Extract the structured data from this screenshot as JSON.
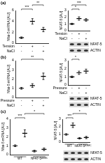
{
  "chart_data": [
    {
      "type": "scatter",
      "panel": "(a)",
      "y_label": "Nfat-5 mRNA [AU]",
      "categories": [
        null,
        null,
        null
      ],
      "values": [
        1,
        4,
        2.5
      ],
      "errors": [
        0.15,
        0.5,
        0.4
      ],
      "color": "#000000",
      "marker": "line",
      "ylim": [
        0,
        6
      ],
      "yticks": [
        0,
        2,
        4,
        6
      ],
      "grid": false,
      "tick_labels": "y",
      "annotations": [
        {
          "text": "***",
          "from": 0,
          "to": 1
        },
        {
          "text": "**",
          "from": 1,
          "to": 2
        }
      ],
      "conditions": [
        {
          "label": "Tension",
          "marks": [
            "-",
            "+",
            "-"
          ]
        },
        {
          "label": "NaCl",
          "marks": [
            "-",
            "-",
            "+"
          ]
        }
      ]
    },
    {
      "type": "scatter",
      "y_label": "NFAT-5 [AU]",
      "categories": [
        null,
        null,
        null
      ],
      "values": [
        1,
        1.8,
        1.6
      ],
      "errors": [
        0.1,
        0.25,
        0.2
      ],
      "color": "#000000",
      "marker": "line",
      "ylim": [
        0,
        3
      ],
      "yticks": [
        0,
        1,
        2,
        3
      ],
      "grid": false,
      "tick_labels": "y",
      "annotations": [
        {
          "text": "*",
          "from": 0,
          "to": 1
        },
        {
          "text": "***",
          "from": 0,
          "to": 2
        }
      ],
      "conditions": [
        {
          "label": "Tension",
          "marks": [
            "-",
            "+",
            "-"
          ]
        },
        {
          "label": "NaCl",
          "marks": [
            "-",
            "-",
            "+"
          ]
        }
      ],
      "blot_labels": [
        "NFAT-5",
        "ACTIN"
      ]
    },
    {
      "type": "scatter",
      "panel": "(b)",
      "y_label": "Nfat-5 mRNA [AU]",
      "categories": [
        null,
        null,
        null
      ],
      "values": [
        1,
        1.3,
        2.3
      ],
      "errors": [
        0.1,
        0.2,
        0.35
      ],
      "color": "#000000",
      "marker": "line",
      "ylim": [
        0,
        4
      ],
      "yticks": [
        0,
        1,
        2,
        3,
        4
      ],
      "grid": false,
      "tick_labels": "y",
      "annotations": [
        {
          "text": "**",
          "from": 0,
          "to": 2
        }
      ],
      "conditions": [
        {
          "label": "Pressure",
          "marks": [
            "-",
            "+",
            "-"
          ]
        },
        {
          "label": "NaCl",
          "marks": [
            "-",
            "-",
            "+"
          ]
        }
      ]
    },
    {
      "type": "scatter",
      "y_label": "NFAT-5 [AU]",
      "categories": [
        null,
        null,
        null
      ],
      "values": [
        1,
        1.5,
        1.7
      ],
      "errors": [
        0.1,
        0.2,
        0.25
      ],
      "color": "#000000",
      "marker": "line",
      "ylim": [
        0,
        3
      ],
      "yticks": [
        0,
        1,
        2,
        3
      ],
      "grid": false,
      "tick_labels": "y",
      "annotations": [
        {
          "text": "*",
          "from": 0,
          "to": 1
        }
      ],
      "conditions": [
        {
          "label": "Pressure",
          "marks": [
            "-",
            "+",
            "-"
          ]
        },
        {
          "label": "NaCl",
          "marks": [
            "-",
            "-",
            "+"
          ]
        }
      ],
      "blot_labels": [
        "NFAT-5",
        "ACTIN"
      ]
    },
    {
      "type": "scatter",
      "panel": "(c)",
      "y_label": "Nfat-5 mRNA [AU]",
      "categories": [
        null,
        null,
        null,
        null
      ],
      "values": [
        1,
        2.4,
        0.4,
        0.6
      ],
      "errors": [
        0.1,
        0.4,
        0.1,
        0.15
      ],
      "color": "#000000",
      "marker": "line",
      "ylim": [
        0,
        4
      ],
      "yticks": [
        0,
        1,
        2,
        3,
        4
      ],
      "grid": false,
      "tick_labels": "y",
      "annotations": [
        {
          "text": "***",
          "from": 0,
          "to": 1
        },
        {
          "text": "*",
          "from": 1,
          "to": 3
        }
      ],
      "groups": [
        {
          "label": "WT",
          "from": 0,
          "to": 1
        },
        {
          "label": "NFAT-5",
          "superscript": "ΔSMC",
          "from": 2,
          "to": 3
        }
      ]
    },
    {
      "type": "scatter",
      "y_label": "NFAT-5 [AU]",
      "categories": [
        null,
        null,
        null,
        null
      ],
      "values": [
        1,
        2.2,
        0.5,
        0.6
      ],
      "errors": [
        0.1,
        0.3,
        0.1,
        0.15
      ],
      "color": "#000000",
      "marker": "line",
      "ylim": [
        0,
        3
      ],
      "yticks": [
        0,
        1,
        2,
        3
      ],
      "grid": false,
      "tick_labels": "y",
      "annotations": [
        {
          "text": "***",
          "from": 0,
          "to": 1
        },
        {
          "text": "*",
          "from": 1,
          "to": 3
        }
      ],
      "groups": [
        {
          "label": "WT",
          "from": 0,
          "to": 1
        },
        {
          "label": "NFAT-5",
          "superscript": "ΔSMC",
          "from": 2,
          "to": 3
        }
      ],
      "blot_labels": [
        "NFAT-5",
        "ACTIN"
      ]
    }
  ]
}
